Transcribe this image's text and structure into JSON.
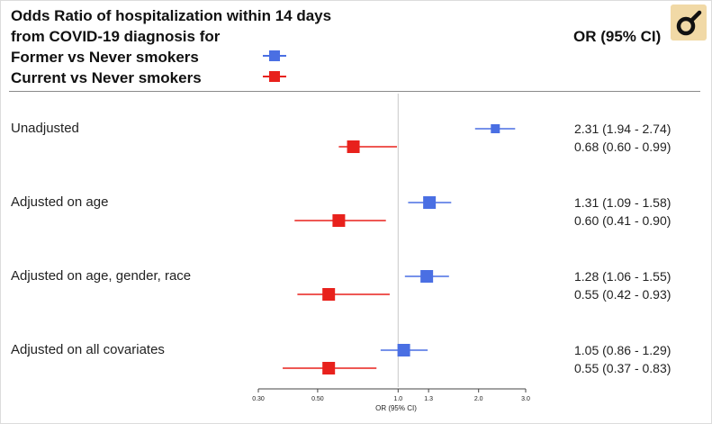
{
  "title_line1": "Odds Ratio of hospitalization within 14 days",
  "title_line2": "from COVID-19 diagnosis for",
  "legend": [
    {
      "label": "Former vs Never smokers",
      "color": "#4a6fe3"
    },
    {
      "label": "Current vs Never smokers",
      "color": "#e8211c"
    }
  ],
  "or_column_header": "OR (95% CI)",
  "chart_data": {
    "type": "forest",
    "x_scale": "log",
    "reference_line": 1.0,
    "xlabel": "OR (95% CI)",
    "xticks": [
      {
        "value": 0.3,
        "label": "0.30"
      },
      {
        "value": 0.5,
        "label": "0.50"
      },
      {
        "value": 1.0,
        "label": "1.0"
      },
      {
        "value": 1.3,
        "label": "1.3"
      },
      {
        "value": 2.0,
        "label": "2.0"
      },
      {
        "value": 3.0,
        "label": "3.0"
      }
    ],
    "xlim": [
      0.3,
      3.0
    ],
    "series_names": [
      "Former vs Never smokers",
      "Current vs Never smokers"
    ],
    "groups": [
      {
        "label": "Unadjusted",
        "estimates": [
          {
            "series": "Former vs Never smokers",
            "or": 2.31,
            "lo": 1.94,
            "hi": 2.74,
            "text": "2.31 (1.94 - 2.74)"
          },
          {
            "series": "Current vs Never smokers",
            "or": 0.68,
            "lo": 0.6,
            "hi": 0.99,
            "text": "0.68 (0.60 - 0.99)"
          }
        ]
      },
      {
        "label": "Adjusted on age",
        "estimates": [
          {
            "series": "Former vs Never smokers",
            "or": 1.31,
            "lo": 1.09,
            "hi": 1.58,
            "text": "1.31 (1.09 - 1.58)"
          },
          {
            "series": "Current vs Never smokers",
            "or": 0.6,
            "lo": 0.41,
            "hi": 0.9,
            "text": "0.60 (0.41 - 0.90)"
          }
        ]
      },
      {
        "label": "Adjusted on age, gender, race",
        "estimates": [
          {
            "series": "Former vs Never smokers",
            "or": 1.28,
            "lo": 1.06,
            "hi": 1.55,
            "text": "1.28 (1.06 - 1.55)"
          },
          {
            "series": "Current vs Never smokers",
            "or": 0.55,
            "lo": 0.42,
            "hi": 0.93,
            "text": "0.55 (0.42 - 0.93)"
          }
        ]
      },
      {
        "label": "Adjusted on all covariates",
        "estimates": [
          {
            "series": "Former vs Never smokers",
            "or": 1.05,
            "lo": 0.86,
            "hi": 1.29,
            "text": "1.05 (0.86 - 1.29)"
          },
          {
            "series": "Current vs Never smokers",
            "or": 0.55,
            "lo": 0.37,
            "hi": 0.83,
            "text": "0.55 (0.37 - 0.83)"
          }
        ]
      }
    ]
  },
  "icons": {
    "logo": "magnifier-icon"
  }
}
